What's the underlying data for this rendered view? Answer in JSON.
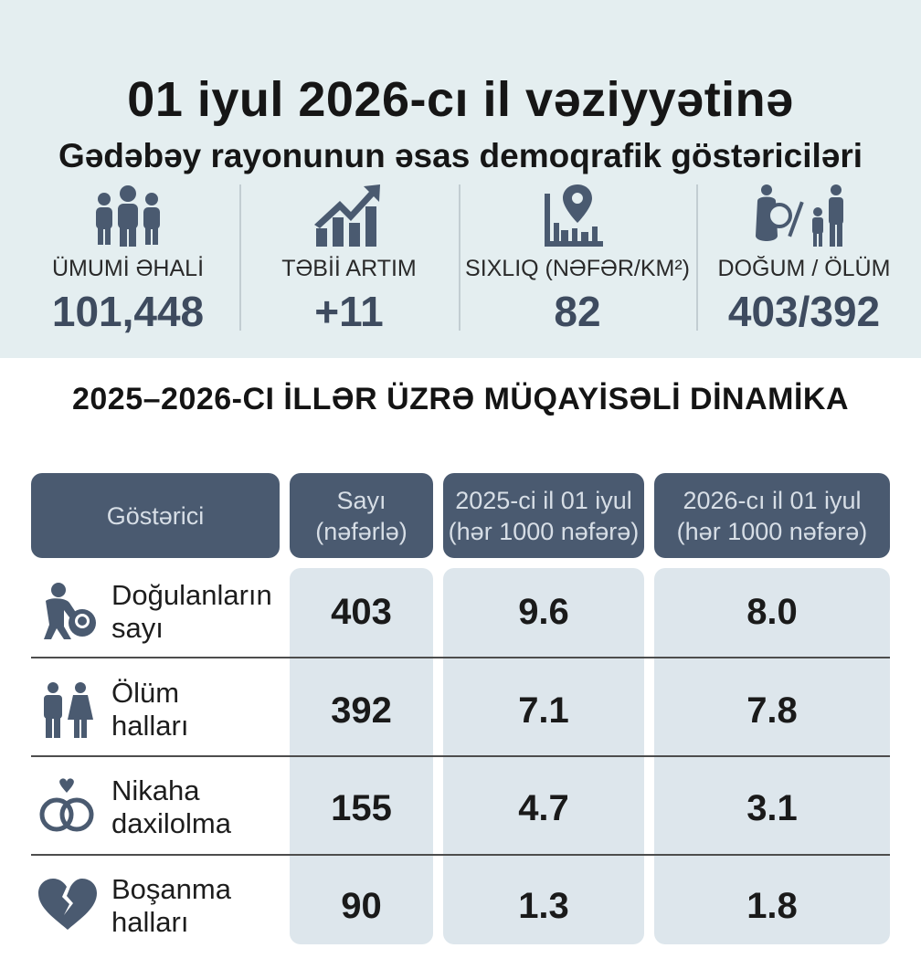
{
  "header": {
    "title": "01 iyul 2026-cı il vəziyyətinə",
    "subtitle": "Gədəbəy rayonunun əsas demoqrafik göstəriciləri"
  },
  "stats": [
    {
      "icon": "people-group-icon",
      "label": "ÜMUMİ ƏHALİ",
      "value": "101,448"
    },
    {
      "icon": "growth-chart-icon",
      "label": "TƏBİİ ARTIM",
      "value": "+11"
    },
    {
      "icon": "map-pin-city-icon",
      "label": "SIXLIQ (NƏFƏR/KM²)",
      "value": "82"
    },
    {
      "icon": "birth-death-icon",
      "label": "DOĞUM / ÖLÜM",
      "value": "403/392"
    }
  ],
  "section_title": "2025–2026-CI İLLƏR ÜZRƏ MÜQAYİSƏLİ DİNAMİKA",
  "table": {
    "headers": [
      {
        "line1": "Göstərici",
        "line2": ""
      },
      {
        "line1": "Sayı",
        "line2": "(nəfərlə)"
      },
      {
        "line1": "2025-ci il 01 iyul",
        "line2": "(hər 1000 nəfərə)"
      },
      {
        "line1": "2026-cı il 01 iyul",
        "line2": "(hər 1000 nəfərə)"
      }
    ],
    "rows": [
      {
        "icon": "parent-baby-icon",
        "name1": "Doğulanların",
        "name2": "sayı",
        "count": "403",
        "y2025": "9.6",
        "y2026": "8.0"
      },
      {
        "icon": "man-woman-icon",
        "name1": "Ölüm",
        "name2": "halları",
        "count": "392",
        "y2025": "7.1",
        "y2026": "7.8"
      },
      {
        "icon": "rings-heart-icon",
        "name1": "Nikaha",
        "name2": "daxilolma",
        "count": "155",
        "y2025": "4.7",
        "y2026": "3.1"
      },
      {
        "icon": "broken-heart-icon",
        "name1": "Boşanma",
        "name2": "halları",
        "count": "90",
        "y2025": "1.3",
        "y2026": "1.8"
      }
    ]
  },
  "colors": {
    "top_band": "#e4eef0",
    "header_bg": "#4a5a70",
    "column_bg": "#dde6ec",
    "value_text": "#3e4b5f"
  }
}
